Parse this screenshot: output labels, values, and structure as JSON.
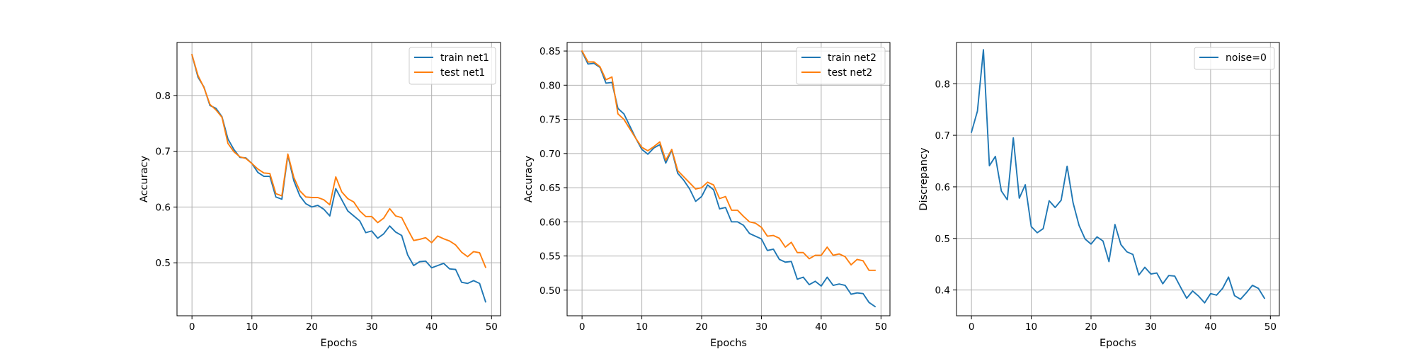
{
  "chart_data": [
    {
      "type": "line",
      "xlabel": "Epochs",
      "ylabel": "Accuracy",
      "xlim": [
        -2.5,
        51.5
      ],
      "ylim": [
        0.405,
        0.895
      ],
      "xticks": [
        0,
        10,
        20,
        30,
        40,
        50
      ],
      "yticks": [
        0.5,
        0.6,
        0.7,
        0.8
      ],
      "ytick_labels": [
        "0.5",
        "0.6",
        "0.7",
        "0.8"
      ],
      "grid": true,
      "legend_position": "top-right",
      "x": [
        0,
        1,
        2,
        3,
        4,
        5,
        6,
        7,
        8,
        9,
        10,
        11,
        12,
        13,
        14,
        15,
        16,
        17,
        18,
        19,
        20,
        21,
        22,
        23,
        24,
        25,
        26,
        27,
        28,
        29,
        30,
        31,
        32,
        33,
        34,
        35,
        36,
        37,
        38,
        39,
        40,
        41,
        42,
        43,
        44,
        45,
        46,
        47,
        48,
        49
      ],
      "series": [
        {
          "name": "train net1",
          "color": "#1f77b4",
          "values": [
            0.873,
            0.833,
            0.815,
            0.782,
            0.777,
            0.762,
            0.722,
            0.703,
            0.689,
            0.688,
            0.678,
            0.662,
            0.655,
            0.655,
            0.618,
            0.614,
            0.693,
            0.647,
            0.62,
            0.606,
            0.6,
            0.603,
            0.596,
            0.584,
            0.633,
            0.613,
            0.593,
            0.584,
            0.575,
            0.554,
            0.557,
            0.544,
            0.552,
            0.566,
            0.555,
            0.549,
            0.514,
            0.495,
            0.502,
            0.503,
            0.491,
            0.495,
            0.499,
            0.489,
            0.488,
            0.465,
            0.463,
            0.468,
            0.463,
            0.43
          ]
        },
        {
          "name": "test net1",
          "color": "#ff7f0e",
          "values": [
            0.873,
            0.836,
            0.814,
            0.784,
            0.774,
            0.761,
            0.714,
            0.699,
            0.69,
            0.687,
            0.678,
            0.668,
            0.661,
            0.66,
            0.624,
            0.62,
            0.695,
            0.653,
            0.629,
            0.618,
            0.617,
            0.617,
            0.613,
            0.604,
            0.654,
            0.627,
            0.615,
            0.609,
            0.593,
            0.583,
            0.583,
            0.572,
            0.58,
            0.597,
            0.584,
            0.581,
            0.56,
            0.54,
            0.542,
            0.545,
            0.536,
            0.548,
            0.543,
            0.539,
            0.532,
            0.519,
            0.511,
            0.52,
            0.518,
            0.492
          ]
        }
      ]
    },
    {
      "type": "line",
      "xlabel": "Epochs",
      "ylabel": "Accuracy",
      "xlim": [
        -2.5,
        51.5
      ],
      "ylim": [
        0.4625,
        0.8625
      ],
      "xticks": [
        0,
        10,
        20,
        30,
        40,
        50
      ],
      "yticks": [
        0.5,
        0.55,
        0.6,
        0.65,
        0.7,
        0.75,
        0.8,
        0.85
      ],
      "ytick_labels": [
        "0.50",
        "0.55",
        "0.60",
        "0.65",
        "0.70",
        "0.75",
        "0.80",
        "0.85"
      ],
      "grid": true,
      "legend_position": "top-right",
      "x": [
        0,
        1,
        2,
        3,
        4,
        5,
        6,
        7,
        8,
        9,
        10,
        11,
        12,
        13,
        14,
        15,
        16,
        17,
        18,
        19,
        20,
        21,
        22,
        23,
        24,
        25,
        26,
        27,
        28,
        29,
        30,
        31,
        32,
        33,
        34,
        35,
        36,
        37,
        38,
        39,
        40,
        41,
        42,
        43,
        44,
        45,
        46,
        47,
        48,
        49
      ],
      "series": [
        {
          "name": "train net2",
          "color": "#1f77b4",
          "values": [
            0.849,
            0.831,
            0.832,
            0.826,
            0.803,
            0.804,
            0.766,
            0.758,
            0.74,
            0.722,
            0.706,
            0.699,
            0.708,
            0.713,
            0.686,
            0.705,
            0.671,
            0.661,
            0.648,
            0.63,
            0.637,
            0.654,
            0.647,
            0.619,
            0.621,
            0.6,
            0.6,
            0.595,
            0.583,
            0.579,
            0.575,
            0.558,
            0.56,
            0.545,
            0.541,
            0.542,
            0.516,
            0.519,
            0.508,
            0.513,
            0.506,
            0.519,
            0.507,
            0.509,
            0.507,
            0.494,
            0.496,
            0.495,
            0.482,
            0.476
          ]
        },
        {
          "name": "test net2",
          "color": "#ff7f0e",
          "values": [
            0.85,
            0.834,
            0.834,
            0.827,
            0.808,
            0.812,
            0.758,
            0.75,
            0.736,
            0.722,
            0.709,
            0.704,
            0.71,
            0.717,
            0.69,
            0.706,
            0.675,
            0.666,
            0.657,
            0.648,
            0.65,
            0.658,
            0.654,
            0.634,
            0.637,
            0.617,
            0.617,
            0.608,
            0.6,
            0.598,
            0.592,
            0.579,
            0.58,
            0.576,
            0.563,
            0.57,
            0.555,
            0.555,
            0.546,
            0.551,
            0.551,
            0.563,
            0.551,
            0.553,
            0.549,
            0.537,
            0.545,
            0.543,
            0.529,
            0.529
          ]
        }
      ]
    },
    {
      "type": "line",
      "xlabel": "Epochs",
      "ylabel": "Discrepancy",
      "xlim": [
        -2.5,
        51.5
      ],
      "ylim": [
        0.35,
        0.88
      ],
      "xticks": [
        0,
        10,
        20,
        30,
        40,
        50
      ],
      "yticks": [
        0.4,
        0.5,
        0.6,
        0.7,
        0.8
      ],
      "ytick_labels": [
        "0.4",
        "0.5",
        "0.6",
        "0.7",
        "0.8"
      ],
      "grid": true,
      "legend_position": "top-right",
      "x": [
        0,
        1,
        2,
        3,
        4,
        5,
        6,
        7,
        8,
        9,
        10,
        11,
        12,
        13,
        14,
        15,
        16,
        17,
        18,
        19,
        20,
        21,
        22,
        23,
        24,
        25,
        26,
        27,
        28,
        29,
        30,
        31,
        32,
        33,
        34,
        35,
        36,
        37,
        38,
        39,
        40,
        41,
        42,
        43,
        44,
        45,
        46,
        47,
        48,
        49
      ],
      "series": [
        {
          "name": "noise=0",
          "color": "#1f77b4",
          "values": [
            0.706,
            0.747,
            0.866,
            0.641,
            0.659,
            0.592,
            0.575,
            0.695,
            0.578,
            0.604,
            0.523,
            0.511,
            0.519,
            0.573,
            0.56,
            0.574,
            0.64,
            0.569,
            0.525,
            0.499,
            0.489,
            0.503,
            0.495,
            0.455,
            0.527,
            0.488,
            0.474,
            0.469,
            0.429,
            0.444,
            0.431,
            0.433,
            0.412,
            0.428,
            0.427,
            0.405,
            0.384,
            0.398,
            0.388,
            0.375,
            0.393,
            0.39,
            0.403,
            0.425,
            0.389,
            0.382,
            0.395,
            0.409,
            0.403,
            0.384
          ]
        }
      ]
    }
  ]
}
